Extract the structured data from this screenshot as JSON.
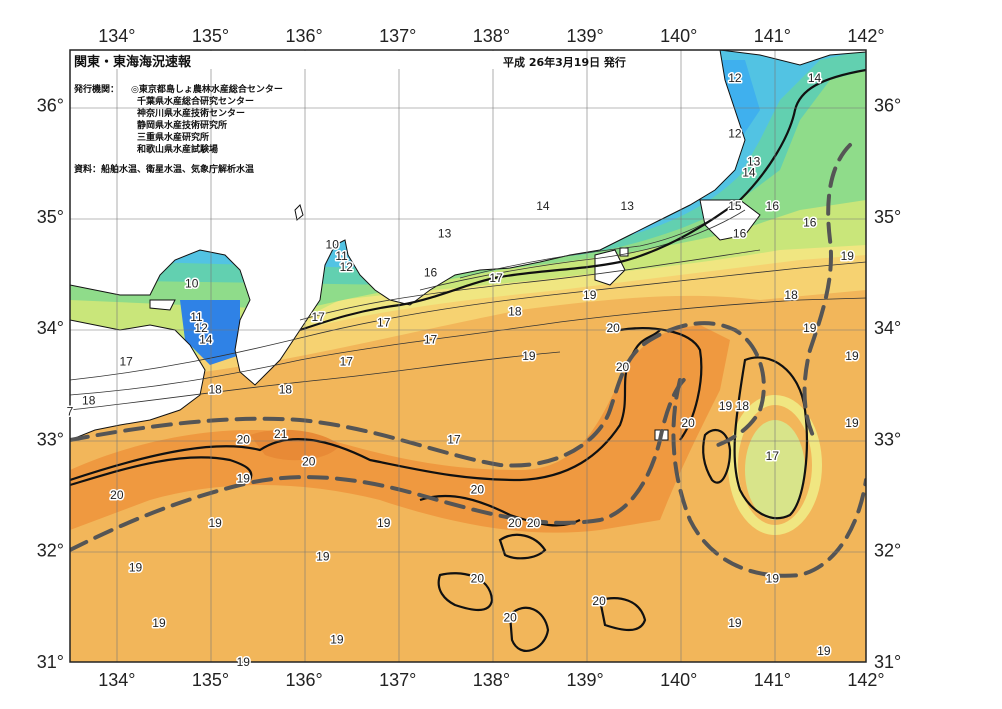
{
  "title": "関東・東海海況速報",
  "issue_date": "平成 26年3月19日 発行",
  "issuers": {
    "label": "発行機関：",
    "names": [
      "◎東京都島しょ農林水産総合センター",
      "千葉県水産総合研究センター",
      "神奈川県水産技術センター",
      "静岡県水産技術研究所",
      "三重県水産研究所",
      "和歌山県水産試験場"
    ]
  },
  "sources": "資料：船舶水温、衛星水温、気象庁解析水温",
  "axes": {
    "lon_labels": [
      "134°",
      "135°",
      "136°",
      "137°",
      "138°",
      "139°",
      "140°",
      "141°",
      "142°"
    ],
    "lat_labels": [
      "36°",
      "35°",
      "34°",
      "33°",
      "32°",
      "31°"
    ]
  },
  "map_data": {
    "type": "sea-surface-temperature-map",
    "lon_range": [
      133.5,
      142.0
    ],
    "lat_range": [
      31.0,
      36.5
    ],
    "grid": true,
    "isotherm_labels": [
      {
        "text": "12",
        "lon": 140.6,
        "lat": 36.25
      },
      {
        "text": "14",
        "lon": 141.45,
        "lat": 36.25
      },
      {
        "text": "12",
        "lon": 140.6,
        "lat": 35.75
      },
      {
        "text": "13",
        "lon": 140.8,
        "lat": 35.5
      },
      {
        "text": "14",
        "lon": 140.75,
        "lat": 35.4
      },
      {
        "text": "15",
        "lon": 140.6,
        "lat": 35.1
      },
      {
        "text": "16",
        "lon": 141.0,
        "lat": 35.1
      },
      {
        "text": "16",
        "lon": 141.4,
        "lat": 34.95
      },
      {
        "text": "16",
        "lon": 140.65,
        "lat": 34.85
      },
      {
        "text": "19",
        "lon": 141.8,
        "lat": 34.65
      },
      {
        "text": "14",
        "lon": 138.55,
        "lat": 35.1
      },
      {
        "text": "13",
        "lon": 139.45,
        "lat": 35.1
      },
      {
        "text": "13",
        "lon": 137.5,
        "lat": 34.85
      },
      {
        "text": "10",
        "lon": 136.3,
        "lat": 34.75
      },
      {
        "text": "11",
        "lon": 136.4,
        "lat": 34.65
      },
      {
        "text": "12",
        "lon": 136.45,
        "lat": 34.55
      },
      {
        "text": "16",
        "lon": 137.35,
        "lat": 34.5
      },
      {
        "text": "17",
        "lon": 138.05,
        "lat": 34.45
      },
      {
        "text": "10",
        "lon": 134.8,
        "lat": 34.4
      },
      {
        "text": "18",
        "lon": 138.25,
        "lat": 34.15
      },
      {
        "text": "19",
        "lon": 139.05,
        "lat": 34.3
      },
      {
        "text": "18",
        "lon": 141.2,
        "lat": 34.3
      },
      {
        "text": "20",
        "lon": 139.3,
        "lat": 34.0
      },
      {
        "text": "11",
        "lon": 134.85,
        "lat": 34.1
      },
      {
        "text": "12",
        "lon": 134.9,
        "lat": 34.0
      },
      {
        "text": "14",
        "lon": 134.95,
        "lat": 33.9
      },
      {
        "text": "17",
        "lon": 136.15,
        "lat": 34.1
      },
      {
        "text": "17",
        "lon": 136.85,
        "lat": 34.05
      },
      {
        "text": "17",
        "lon": 137.35,
        "lat": 33.9
      },
      {
        "text": "19",
        "lon": 141.4,
        "lat": 34.0
      },
      {
        "text": "17",
        "lon": 134.1,
        "lat": 33.7
      },
      {
        "text": "17",
        "lon": 136.45,
        "lat": 33.7
      },
      {
        "text": "19",
        "lon": 138.4,
        "lat": 33.75
      },
      {
        "text": "20",
        "lon": 139.4,
        "lat": 33.65
      },
      {
        "text": "19",
        "lon": 141.85,
        "lat": 33.75
      },
      {
        "text": "18",
        "lon": 135.05,
        "lat": 33.45
      },
      {
        "text": "18",
        "lon": 135.8,
        "lat": 33.45
      },
      {
        "text": "7",
        "lon": 133.5,
        "lat": 33.25
      },
      {
        "text": "18",
        "lon": 133.7,
        "lat": 33.35
      },
      {
        "text": "19",
        "lon": 140.5,
        "lat": 33.3
      },
      {
        "text": "18",
        "lon": 140.68,
        "lat": 33.3
      },
      {
        "text": "20",
        "lon": 135.35,
        "lat": 33.0
      },
      {
        "text": "21",
        "lon": 135.75,
        "lat": 33.05
      },
      {
        "text": "20",
        "lon": 140.1,
        "lat": 33.15
      },
      {
        "text": "19",
        "lon": 141.85,
        "lat": 33.15
      },
      {
        "text": "17",
        "lon": 137.6,
        "lat": 33.0
      },
      {
        "text": "20",
        "lon": 136.05,
        "lat": 32.8
      },
      {
        "text": "17",
        "lon": 141.0,
        "lat": 32.85
      },
      {
        "text": "19",
        "lon": 135.35,
        "lat": 32.65
      },
      {
        "text": "20",
        "lon": 137.85,
        "lat": 32.55
      },
      {
        "text": "20",
        "lon": 134.0,
        "lat": 32.5
      },
      {
        "text": "19",
        "lon": 135.05,
        "lat": 32.25
      },
      {
        "text": "19",
        "lon": 136.85,
        "lat": 32.25
      },
      {
        "text": "20",
        "lon": 138.25,
        "lat": 32.25
      },
      {
        "text": "20",
        "lon": 138.45,
        "lat": 32.25
      },
      {
        "text": "19",
        "lon": 136.2,
        "lat": 31.95
      },
      {
        "text": "19",
        "lon": 134.2,
        "lat": 31.85
      },
      {
        "text": "20",
        "lon": 137.85,
        "lat": 31.75
      },
      {
        "text": "19",
        "lon": 141.0,
        "lat": 31.75
      },
      {
        "text": "20",
        "lon": 139.15,
        "lat": 31.55
      },
      {
        "text": "19",
        "lon": 134.45,
        "lat": 31.35
      },
      {
        "text": "20",
        "lon": 138.2,
        "lat": 31.4
      },
      {
        "text": "19",
        "lon": 140.6,
        "lat": 31.35
      },
      {
        "text": "19",
        "lon": 136.35,
        "lat": 31.2
      },
      {
        "text": "19",
        "lon": 141.55,
        "lat": 31.1
      },
      {
        "text": "19",
        "lon": 135.35,
        "lat": 31.0
      }
    ]
  }
}
